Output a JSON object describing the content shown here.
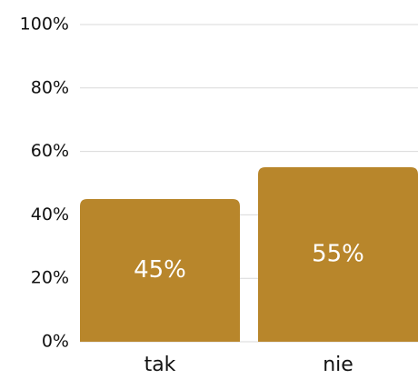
{
  "chart_data": {
    "type": "bar",
    "categories": [
      "tak",
      "nie"
    ],
    "values": [
      45,
      55
    ],
    "value_labels": [
      "45%",
      "55%"
    ],
    "color": "#b8862b",
    "ylim": [
      0,
      100
    ],
    "yticks": [
      {
        "value": 0,
        "label": "0%"
      },
      {
        "value": 20,
        "label": "20%"
      },
      {
        "value": 40,
        "label": "40%"
      },
      {
        "value": 60,
        "label": "60%"
      },
      {
        "value": 80,
        "label": "80%"
      },
      {
        "value": 100,
        "label": "100%"
      }
    ],
    "grid": true
  }
}
